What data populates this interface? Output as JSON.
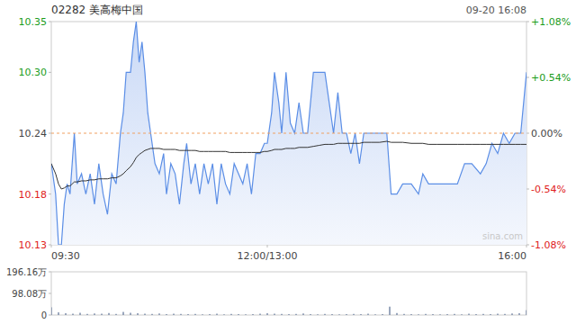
{
  "chart_data": [
    {
      "type": "line",
      "title": "02282 美高梅中国",
      "subtitle": "09-20 16:08",
      "watermark": "sina.com",
      "prev_close": 10.24,
      "x": [
        0,
        3,
        5,
        7,
        9,
        11,
        13,
        16,
        18,
        21,
        24,
        27,
        30,
        33,
        36,
        39,
        42,
        45,
        48,
        50,
        52,
        55,
        57,
        59,
        61,
        63,
        65,
        67,
        69,
        72,
        75,
        78,
        80,
        83,
        86,
        89,
        92,
        94,
        97,
        100,
        103,
        106,
        109,
        112,
        115,
        118,
        121,
        124,
        127,
        130,
        133,
        136,
        139,
        142,
        145,
        148,
        150,
        153,
        155,
        158,
        160,
        163,
        166,
        169,
        172,
        175,
        178,
        182,
        186,
        190,
        193,
        196,
        199,
        202,
        205,
        208,
        211,
        214,
        217,
        222,
        228,
        233,
        236,
        240,
        244,
        250,
        255,
        258,
        262,
        268,
        275,
        282,
        287,
        292,
        298,
        302,
        306,
        310,
        314,
        318,
        322,
        326,
        330
      ],
      "series": [
        {
          "type": "area",
          "color": "#5b8ee6",
          "values": [
            10.21,
            10.18,
            10.13,
            10.13,
            10.17,
            10.19,
            10.18,
            10.24,
            10.19,
            10.2,
            10.18,
            10.2,
            10.17,
            10.21,
            10.18,
            10.16,
            10.2,
            10.19,
            10.24,
            10.26,
            10.3,
            10.3,
            10.33,
            10.35,
            10.31,
            10.33,
            10.3,
            10.26,
            10.24,
            10.21,
            10.2,
            10.22,
            10.18,
            10.21,
            10.2,
            10.17,
            10.21,
            10.23,
            10.19,
            10.21,
            10.18,
            10.21,
            10.19,
            10.21,
            10.17,
            10.21,
            10.19,
            10.18,
            10.21,
            10.2,
            10.19,
            10.21,
            10.18,
            10.22,
            10.22,
            10.23,
            10.23,
            10.26,
            10.3,
            10.27,
            10.24,
            10.3,
            10.25,
            10.24,
            10.27,
            10.24,
            10.24,
            10.3,
            10.3,
            10.3,
            10.27,
            10.24,
            10.28,
            10.24,
            10.24,
            10.22,
            10.24,
            10.21,
            10.24,
            10.24,
            10.24,
            10.24,
            10.18,
            10.18,
            10.19,
            10.19,
            10.18,
            10.2,
            10.19,
            10.19,
            10.19,
            10.19,
            10.21,
            10.21,
            10.2,
            10.21,
            10.23,
            10.22,
            10.24,
            10.23,
            10.24,
            10.24,
            10.3
          ]
        },
        {
          "type": "line",
          "color": "#333333",
          "values": [
            10.21,
            10.2,
            10.19,
            10.185,
            10.186,
            10.188,
            10.188,
            10.192,
            10.192,
            10.193,
            10.193,
            10.194,
            10.194,
            10.195,
            10.195,
            10.195,
            10.196,
            10.196,
            10.198,
            10.2,
            10.203,
            10.207,
            10.211,
            10.216,
            10.219,
            10.221,
            10.223,
            10.224,
            10.225,
            10.225,
            10.225,
            10.224,
            10.224,
            10.224,
            10.224,
            10.223,
            10.223,
            10.223,
            10.223,
            10.223,
            10.222,
            10.222,
            10.222,
            10.222,
            10.222,
            10.222,
            10.222,
            10.221,
            10.221,
            10.221,
            10.221,
            10.221,
            10.221,
            10.221,
            10.221,
            10.222,
            10.222,
            10.223,
            10.224,
            10.224,
            10.224,
            10.225,
            10.225,
            10.225,
            10.226,
            10.226,
            10.226,
            10.227,
            10.228,
            10.229,
            10.229,
            10.229,
            10.23,
            10.23,
            10.23,
            10.23,
            10.23,
            10.23,
            10.231,
            10.231,
            10.231,
            10.232,
            10.231,
            10.231,
            10.231,
            10.23,
            10.23,
            10.23,
            10.229,
            10.229,
            10.229,
            10.229,
            10.229,
            10.229,
            10.229,
            10.229,
            10.229,
            10.229,
            10.229,
            10.229,
            10.229,
            10.229,
            10.229
          ]
        }
      ],
      "xlim": [
        0,
        330
      ],
      "xticks": [
        {
          "value": 0,
          "label": "09:30"
        },
        {
          "value": 150,
          "label": "12:00/13:00"
        },
        {
          "value": 330,
          "label": "16:00"
        }
      ],
      "ylim": [
        10.13,
        10.35
      ],
      "yticks": [
        10.35,
        {
          "value": 10.3,
          "label": "10.30"
        },
        10.24,
        10.18,
        10.13
      ],
      "y2lim": [
        -1.08,
        1.08
      ],
      "y2ticks": [
        {
          "value": 1.08,
          "label": "+1.08%"
        },
        {
          "value": 0.54,
          "label": "+0.54%"
        },
        {
          "value": 0,
          "label": "0.00%"
        },
        {
          "value": -0.54,
          "label": "-0.54%"
        },
        {
          "value": -1.08,
          "label": "-1.08%"
        }
      ],
      "grid": false
    },
    {
      "type": "bar",
      "color": "#7a8aa8",
      "x": [
        0,
        5,
        10,
        15,
        20,
        25,
        30,
        35,
        40,
        45,
        50,
        55,
        60,
        65,
        70,
        75,
        80,
        85,
        90,
        95,
        100,
        105,
        110,
        115,
        120,
        125,
        130,
        135,
        140,
        145,
        150,
        155,
        160,
        165,
        170,
        175,
        180,
        185,
        190,
        195,
        200,
        205,
        210,
        215,
        220,
        225,
        230,
        235,
        240,
        245,
        250,
        255,
        260,
        265,
        270,
        275,
        280,
        285,
        290,
        295,
        300,
        305,
        310,
        315,
        320,
        325,
        330
      ],
      "values": [
        35,
        12,
        8,
        6,
        10,
        5,
        7,
        6,
        9,
        5,
        14,
        10,
        8,
        6,
        5,
        7,
        4,
        6,
        5,
        4,
        5,
        3,
        4,
        6,
        3,
        5,
        4,
        3,
        4,
        6,
        8,
        6,
        5,
        4,
        5,
        7,
        4,
        3,
        5,
        4,
        3,
        4,
        5,
        4,
        6,
        3,
        4,
        38,
        9,
        5,
        4,
        3,
        5,
        4,
        3,
        4,
        5,
        3,
        6,
        4,
        5,
        4,
        6,
        5,
        7,
        8,
        22
      ],
      "xlim": [
        0,
        330
      ],
      "ylim": [
        0,
        196.16
      ],
      "yticks": [
        {
          "value": 196.16,
          "label": "196.16万"
        },
        {
          "value": 98.08,
          "label": "98.08万"
        },
        0
      ],
      "tick_labels": "y",
      "grid": false
    }
  ]
}
